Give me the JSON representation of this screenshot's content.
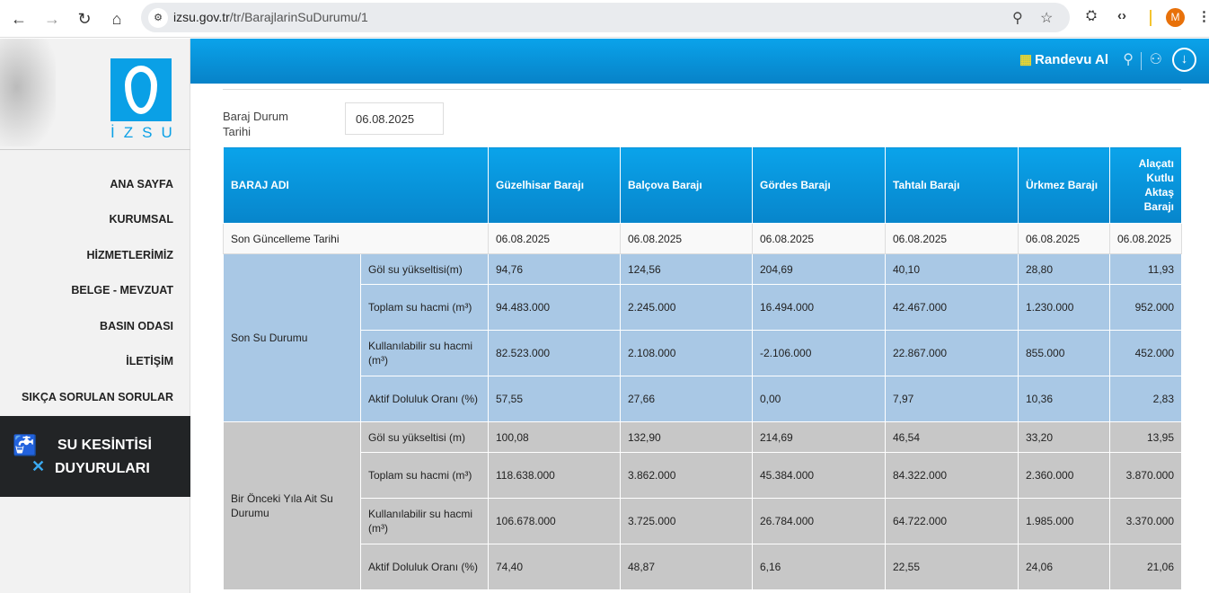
{
  "browser": {
    "url_host": "izsu.gov.tr",
    "url_path": "/tr/BarajlarinSuDurumu/1",
    "avatar": "M"
  },
  "header": {
    "randevu": "Randevu Al"
  },
  "sidebar": {
    "logo": "İZSU",
    "menu": [
      "ANA SAYFA",
      "KURUMSAL",
      "HİZMETLERİMİZ",
      "BELGE - MEVZUAT",
      "BASIN ODASI",
      "İLETİŞİM",
      "SIKÇA SORULAN SORULAR"
    ],
    "outage_line1": "SU KESİNTİSİ",
    "outage_line2": "DUYURULARI"
  },
  "filter": {
    "label": "Baraj Durum Tarihi",
    "value": "06.08.2025"
  },
  "table": {
    "headers": [
      "BARAJ ADI",
      "Güzelhisar Barajı",
      "Balçova Barajı",
      "Gördes Barajı",
      "Tahtalı Barajı",
      "Ürkmez Barajı",
      "Alaçatı Kutlu Aktaş Barajı"
    ],
    "update_label": "Son Güncelleme Tarihi",
    "update_dates": [
      "06.08.2025",
      "06.08.2025",
      "06.08.2025",
      "06.08.2025",
      "06.08.2025",
      "06.08.2025"
    ],
    "sections": [
      {
        "title": "Son Su Durumu",
        "rows": [
          {
            "label": "Göl su yükseltisi(m)",
            "values": [
              "94,76",
              "124,56",
              "204,69",
              "40,10",
              "28,80",
              "11,93"
            ]
          },
          {
            "label": "Toplam su hacmi (m³)",
            "values": [
              "94.483.000",
              "2.245.000",
              "16.494.000",
              "42.467.000",
              "1.230.000",
              "952.000"
            ]
          },
          {
            "label": "Kullanılabilir su hacmi (m³)",
            "values": [
              "82.523.000",
              "2.108.000",
              "-2.106.000",
              "22.867.000",
              "855.000",
              "452.000"
            ]
          },
          {
            "label": "Aktif Doluluk Oranı (%)",
            "values": [
              "57,55",
              "27,66",
              "0,00",
              "7,97",
              "10,36",
              "2,83"
            ]
          }
        ]
      },
      {
        "title": "Bir Önceki Yıla Ait Su Durumu",
        "rows": [
          {
            "label": "Göl su yükseltisi (m)",
            "values": [
              "100,08",
              "132,90",
              "214,69",
              "46,54",
              "33,20",
              "13,95"
            ]
          },
          {
            "label": "Toplam su hacmi (m³)",
            "values": [
              "118.638.000",
              "3.862.000",
              "45.384.000",
              "84.322.000",
              "2.360.000",
              "3.870.000"
            ]
          },
          {
            "label": "Kullanılabilir su hacmi (m³)",
            "values": [
              "106.678.000",
              "3.725.000",
              "26.784.000",
              "64.722.000",
              "1.985.000",
              "3.370.000"
            ]
          },
          {
            "label": "Aktif Doluluk Oranı (%)",
            "values": [
              "74,40",
              "48,87",
              "6,16",
              "22,55",
              "24,06",
              "21,06"
            ]
          }
        ]
      }
    ]
  }
}
